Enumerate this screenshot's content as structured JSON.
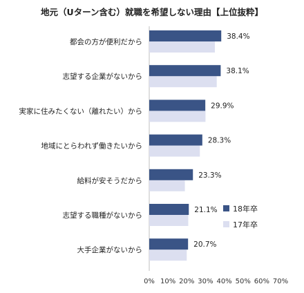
{
  "chart_data": {
    "type": "bar",
    "orientation": "horizontal",
    "title": "地元（Uターン含む）就職を希望しない理由【上位抜粋】",
    "categories": [
      "都会の方が便利だから",
      "志望する企業がないから",
      "実家に住みたくない（離れたい）から",
      "地域にとらわれず働きたいから",
      "給料が安そうだから",
      "志望する職種がないから",
      "大手企業がないから"
    ],
    "series": [
      {
        "name": "18年卒",
        "values": [
          38.4,
          38.1,
          29.9,
          28.3,
          23.3,
          21.1,
          20.7
        ],
        "color": "#3a5486"
      },
      {
        "name": "17年卒",
        "values": [
          35.0,
          36.0,
          30.0,
          27.0,
          19.0,
          20.8,
          20.0
        ],
        "color": "#dcdff0"
      }
    ],
    "data_labels": [
      "38.4%",
      "38.1%",
      "29.9%",
      "28.3%",
      "23.3%",
      "21.1%",
      "20.7%"
    ],
    "x_ticks": [
      "0%",
      "10%",
      "20%",
      "30%",
      "40%",
      "50%",
      "60%",
      "70%"
    ],
    "xlim": [
      0,
      70
    ],
    "unit": "%",
    "grid": false,
    "legend_position": "right"
  }
}
